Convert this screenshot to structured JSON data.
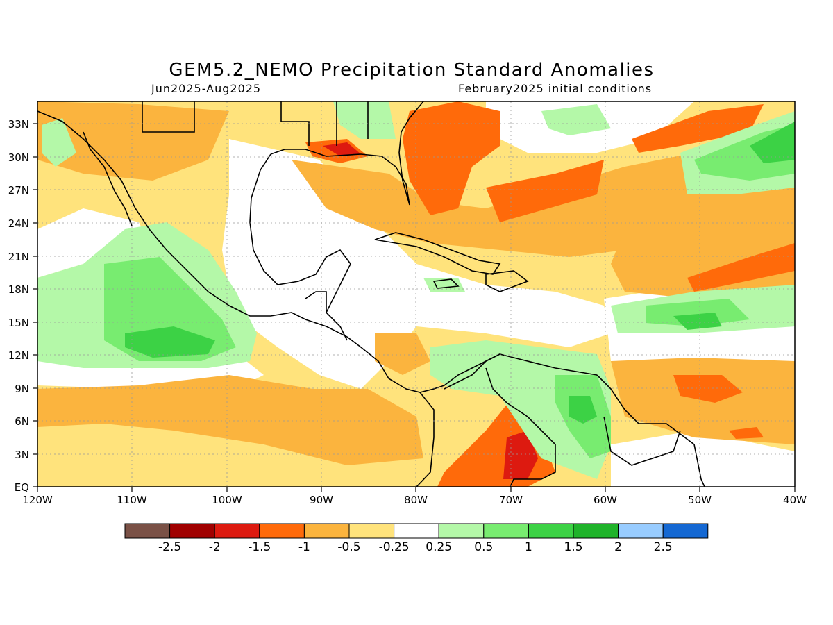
{
  "title": "GEM5.2_NEMO Precipitation Standard Anomalies",
  "period": "Jun2025-Aug2025",
  "init": "February2025 initial conditions",
  "lon_ticks": [
    "120W",
    "110W",
    "100W",
    "90W",
    "80W",
    "70W",
    "60W",
    "50W",
    "40W"
  ],
  "lat_ticks": [
    "33N",
    "30N",
    "27N",
    "24N",
    "21N",
    "18N",
    "15N",
    "12N",
    "9N",
    "6N",
    "3N",
    "EQ"
  ],
  "colorbar": {
    "colors": [
      "#7a5146",
      "#a00000",
      "#dd1a10",
      "#ff6a0a",
      "#fbb43e",
      "#ffe37c",
      "#ffffff",
      "#b4f8a8",
      "#78ec70",
      "#3cd245",
      "#1fb32a",
      "#98ccff",
      "#1468d3"
    ],
    "labels": [
      "-2.5",
      "-2",
      "-1.5",
      "-1",
      "-0.5",
      "-0.25",
      "0.25",
      "0.5",
      "1",
      "1.5",
      "2",
      "2.5"
    ]
  },
  "palette": {
    "light_orange": "#ffe37c",
    "orange": "#fbb43e",
    "dark_orange": "#ff6a0a",
    "red": "#dd1a10",
    "light_green": "#b4f8a8",
    "green": "#78ec70",
    "mid_green": "#3cd245",
    "dark_green": "#1fb32a",
    "coast": "#000000"
  }
}
